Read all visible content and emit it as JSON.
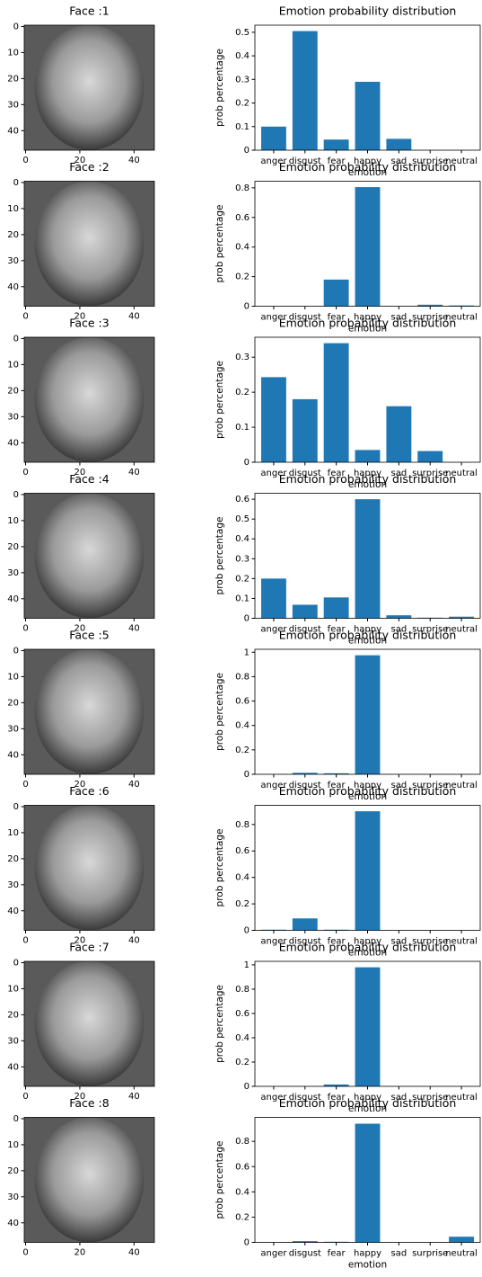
{
  "chart_data": [
    {
      "type": "image",
      "title": "Face :1",
      "xlim": [
        -0.5,
        47.5
      ],
      "ylim": [
        47.5,
        -0.5
      ],
      "xticks": [
        0,
        20,
        40
      ],
      "yticks": [
        0,
        10,
        20,
        30,
        40
      ]
    },
    {
      "type": "bar",
      "title": "Emotion probability distribution",
      "xlabel": "emotion",
      "ylabel": "prob percentage",
      "color": "#1f77b4",
      "categories": [
        "anger",
        "disgust",
        "fear",
        "happy",
        "sad",
        "surprise",
        "neutral"
      ],
      "values": [
        0.1,
        0.505,
        0.045,
        0.29,
        0.048,
        0,
        0
      ],
      "ylim": [
        0,
        0.53
      ],
      "yticks": [
        0.0,
        0.1,
        0.2,
        0.3,
        0.4,
        0.5
      ]
    },
    {
      "type": "image",
      "title": "Face :2",
      "xlim": [
        -0.5,
        47.5
      ],
      "ylim": [
        47.5,
        -0.5
      ],
      "xticks": [
        0,
        20,
        40
      ],
      "yticks": [
        0,
        10,
        20,
        30,
        40
      ]
    },
    {
      "type": "bar",
      "title": "Emotion probability distribution",
      "xlabel": "emotion",
      "ylabel": "prob percentage",
      "color": "#1f77b4",
      "categories": [
        "anger",
        "disgust",
        "fear",
        "happy",
        "sad",
        "surprise",
        "neutral"
      ],
      "values": [
        0,
        0,
        0.18,
        0.805,
        0,
        0.01,
        0.005
      ],
      "ylim": [
        0,
        0.845
      ],
      "yticks": [
        0.0,
        0.2,
        0.4,
        0.6,
        0.8
      ]
    },
    {
      "type": "image",
      "title": "Face :3",
      "xlim": [
        -0.5,
        47.5
      ],
      "ylim": [
        47.5,
        -0.5
      ],
      "xticks": [
        0,
        20,
        40
      ],
      "yticks": [
        0,
        10,
        20,
        30,
        40
      ]
    },
    {
      "type": "bar",
      "title": "Emotion probability distribution",
      "xlabel": "emotion",
      "ylabel": "prob percentage",
      "color": "#1f77b4",
      "categories": [
        "anger",
        "disgust",
        "fear",
        "happy",
        "sad",
        "surprise",
        "neutral"
      ],
      "values": [
        0.243,
        0.18,
        0.34,
        0.035,
        0.16,
        0.032,
        0
      ],
      "ylim": [
        0,
        0.357
      ],
      "yticks": [
        0.0,
        0.1,
        0.2,
        0.3
      ]
    },
    {
      "type": "image",
      "title": "Face :4",
      "xlim": [
        -0.5,
        47.5
      ],
      "ylim": [
        47.5,
        -0.5
      ],
      "xticks": [
        0,
        20,
        40
      ],
      "yticks": [
        0,
        10,
        20,
        30,
        40
      ]
    },
    {
      "type": "bar",
      "title": "Emotion probability distribution",
      "xlabel": "emotion",
      "ylabel": "prob percentage",
      "color": "#1f77b4",
      "categories": [
        "anger",
        "disgust",
        "fear",
        "happy",
        "sad",
        "surprise",
        "neutral"
      ],
      "values": [
        0.2,
        0.068,
        0.105,
        0.6,
        0.015,
        0.003,
        0.008
      ],
      "ylim": [
        0,
        0.63
      ],
      "yticks": [
        0.0,
        0.1,
        0.2,
        0.3,
        0.4,
        0.5,
        0.6
      ]
    },
    {
      "type": "image",
      "title": "Face :5",
      "xlim": [
        -0.5,
        47.5
      ],
      "ylim": [
        47.5,
        -0.5
      ],
      "xticks": [
        0,
        20,
        40
      ],
      "yticks": [
        0,
        10,
        20,
        30,
        40
      ]
    },
    {
      "type": "bar",
      "title": "Emotion probability distribution",
      "xlabel": "emotion",
      "ylabel": "prob percentage",
      "color": "#1f77b4",
      "categories": [
        "anger",
        "disgust",
        "fear",
        "happy",
        "sad",
        "surprise",
        "neutral"
      ],
      "values": [
        0,
        0.012,
        0.008,
        0.975,
        0,
        0,
        0
      ],
      "ylim": [
        0,
        1.024
      ],
      "yticks": [
        0.0,
        0.2,
        0.4,
        0.6,
        0.8,
        1.0
      ]
    },
    {
      "type": "image",
      "title": "Face :6",
      "xlim": [
        -0.5,
        47.5
      ],
      "ylim": [
        47.5,
        -0.5
      ],
      "xticks": [
        0,
        20,
        40
      ],
      "yticks": [
        0,
        10,
        20,
        30,
        40
      ]
    },
    {
      "type": "bar",
      "title": "Emotion probability distribution",
      "xlabel": "emotion",
      "ylabel": "prob percentage",
      "color": "#1f77b4",
      "categories": [
        "anger",
        "disgust",
        "fear",
        "happy",
        "sad",
        "surprise",
        "neutral"
      ],
      "values": [
        0.005,
        0.09,
        0.005,
        0.9,
        0,
        0,
        0
      ],
      "ylim": [
        0,
        0.945
      ],
      "yticks": [
        0.0,
        0.2,
        0.4,
        0.6,
        0.8
      ]
    },
    {
      "type": "image",
      "title": "Face :7",
      "xlim": [
        -0.5,
        47.5
      ],
      "ylim": [
        47.5,
        -0.5
      ],
      "xticks": [
        0,
        20,
        40
      ],
      "yticks": [
        0,
        10,
        20,
        30,
        40
      ]
    },
    {
      "type": "bar",
      "title": "Emotion probability distribution",
      "xlabel": "emotion",
      "ylabel": "prob percentage",
      "color": "#1f77b4",
      "categories": [
        "anger",
        "disgust",
        "fear",
        "happy",
        "sad",
        "surprise",
        "neutral"
      ],
      "values": [
        0,
        0,
        0.015,
        0.98,
        0,
        0,
        0
      ],
      "ylim": [
        0,
        1.029
      ],
      "yticks": [
        0.0,
        0.2,
        0.4,
        0.6,
        0.8,
        1.0
      ]
    },
    {
      "type": "image",
      "title": "Face :8",
      "xlim": [
        -0.5,
        47.5
      ],
      "ylim": [
        47.5,
        -0.5
      ],
      "xticks": [
        0,
        20,
        40
      ],
      "yticks": [
        0,
        10,
        20,
        30,
        40
      ]
    },
    {
      "type": "bar",
      "title": "Emotion probability distribution",
      "xlabel": "emotion",
      "ylabel": "prob percentage",
      "color": "#1f77b4",
      "categories": [
        "anger",
        "disgust",
        "fear",
        "happy",
        "sad",
        "surprise",
        "neutral"
      ],
      "values": [
        0,
        0.01,
        0.005,
        0.94,
        0,
        0,
        0.045
      ],
      "ylim": [
        0,
        0.99
      ],
      "yticks": [
        0.0,
        0.2,
        0.4,
        0.6,
        0.8
      ]
    }
  ]
}
